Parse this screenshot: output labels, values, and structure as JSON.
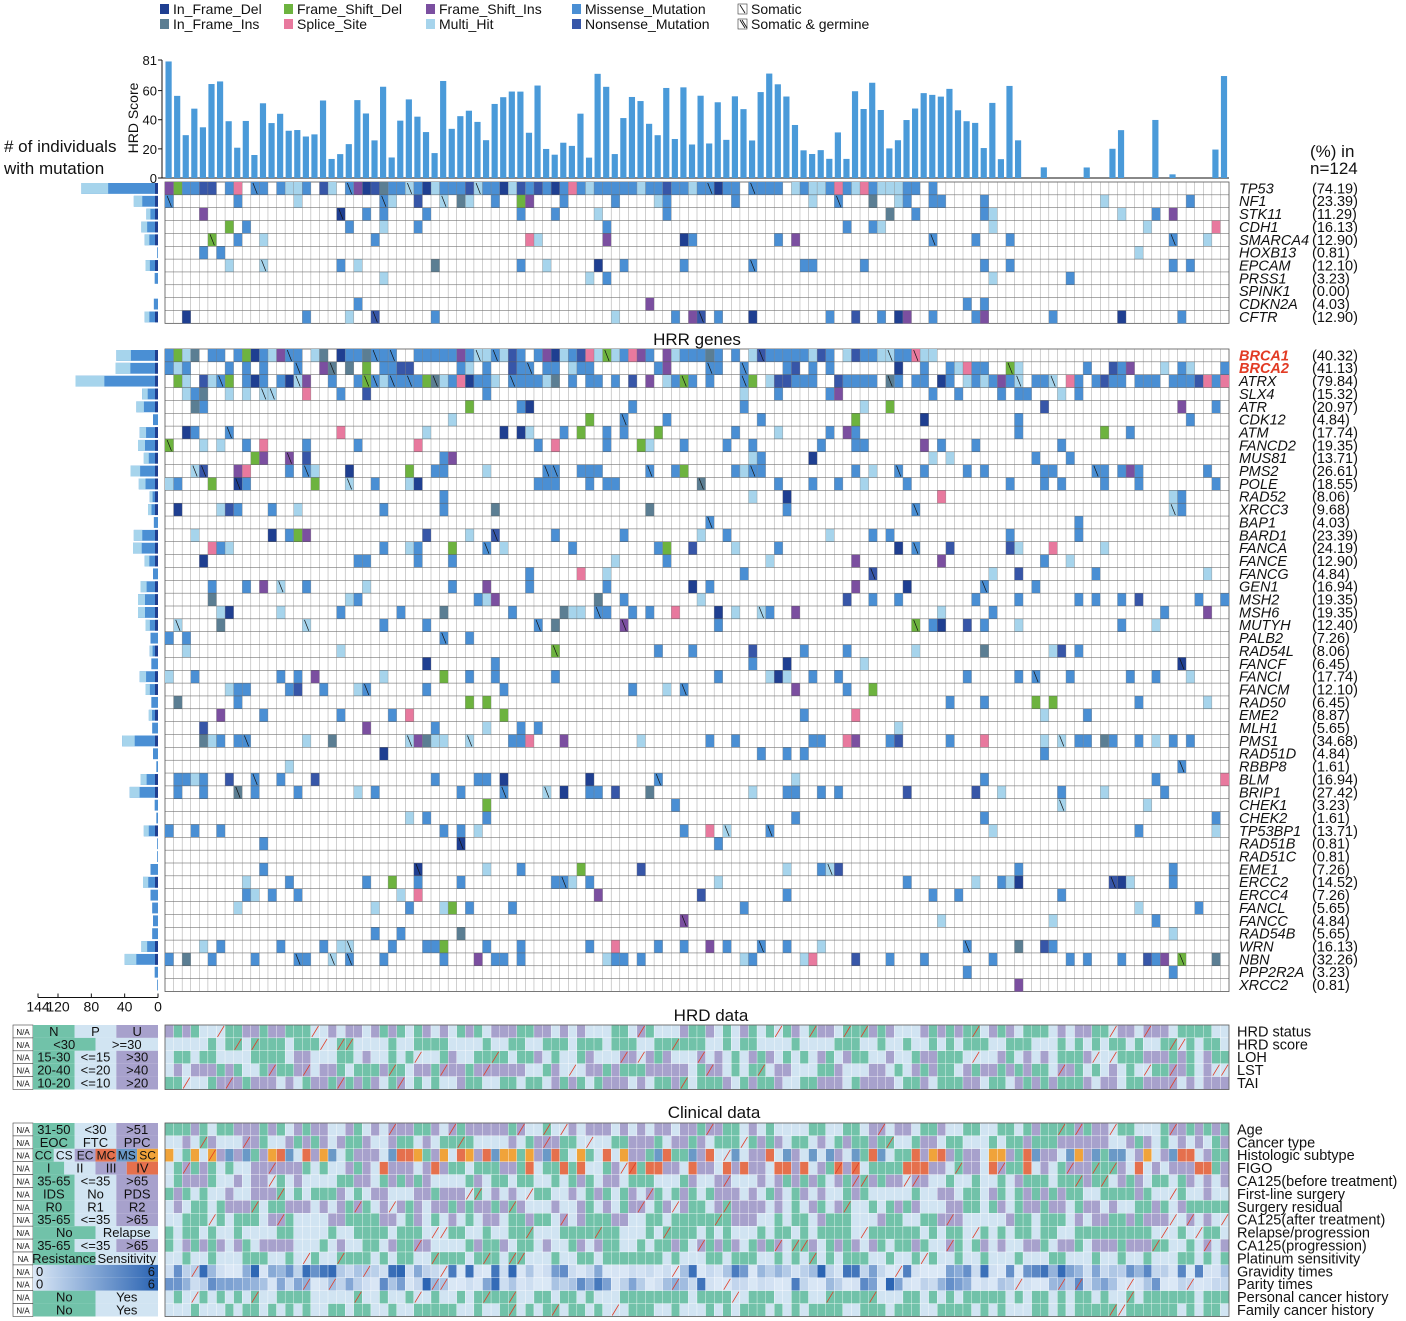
{
  "legend": [
    {
      "label": "In_Frame_Del",
      "color": "#1f3f91"
    },
    {
      "label": "In_Frame_Ins",
      "color": "#5b7e93"
    },
    {
      "label": "Frame_Shift_Del",
      "color": "#6db33f"
    },
    {
      "label": "Splice_Site",
      "color": "#e8799e"
    },
    {
      "label": "Frame_Shift_Ins",
      "color": "#7b4fa0"
    },
    {
      "label": "Multi_Hit",
      "color": "#a6d4ec"
    },
    {
      "label": "Missense_Mutation",
      "color": "#4a8fd4"
    },
    {
      "label": "Nonsense_Mutation",
      "color": "#3756a8"
    },
    {
      "label": "Somatic",
      "icon": "single-slash"
    },
    {
      "label": "Somatic & germine",
      "icon": "double-slash"
    }
  ],
  "chart_data": {
    "type": "heatmap",
    "hrd_score": {
      "ylabel": "HRD Score",
      "yticks": [
        0,
        20,
        40,
        60,
        81
      ],
      "ylim": [
        0,
        81
      ],
      "color": "#4a9ad9"
    },
    "count_axis": {
      "title": [
        "# of individuals",
        "with mutation"
      ],
      "ticks": [
        144,
        120,
        80,
        40,
        0
      ]
    },
    "percent_header": [
      "(%) in",
      "n=124"
    ],
    "gene_groups": [
      {
        "title": "",
        "genes": [
          {
            "name": "TP53",
            "pct": "(74.19)"
          },
          {
            "name": "NF1",
            "pct": "(23.39)"
          },
          {
            "name": "STK11",
            "pct": "(11.29)"
          },
          {
            "name": "CDH1",
            "pct": "(16.13)"
          },
          {
            "name": "SMARCA4",
            "pct": "(12.90)"
          },
          {
            "name": "HOXB13",
            "pct": "(0.81)"
          },
          {
            "name": "EPCAM",
            "pct": "(12.10)"
          },
          {
            "name": "PRSS1",
            "pct": "(3.23)"
          },
          {
            "name": "SPINK1",
            "pct": "(0.00)"
          },
          {
            "name": "CDKN2A",
            "pct": "(4.03)"
          },
          {
            "name": "CFTR",
            "pct": "(12.90)"
          }
        ]
      },
      {
        "title": "HRR genes",
        "genes": [
          {
            "name": "BRCA1",
            "pct": "(40.32)",
            "highlight": true
          },
          {
            "name": "BRCA2",
            "pct": "(41.13)",
            "highlight": true
          },
          {
            "name": "ATRX",
            "pct": "(79.84)"
          },
          {
            "name": "SLX4",
            "pct": "(15.32)"
          },
          {
            "name": "ATR",
            "pct": "(20.97)"
          },
          {
            "name": "CDK12",
            "pct": "(4.84)"
          },
          {
            "name": "ATM",
            "pct": "(17.74)"
          },
          {
            "name": "FANCD2",
            "pct": "(19.35)"
          },
          {
            "name": "MUS81",
            "pct": "(13.71)"
          },
          {
            "name": "PMS2",
            "pct": "(26.61)"
          },
          {
            "name": "POLE",
            "pct": "(18.55)"
          },
          {
            "name": "RAD52",
            "pct": "(8.06)"
          },
          {
            "name": "XRCC3",
            "pct": "(9.68)"
          },
          {
            "name": "BAP1",
            "pct": "(4.03)"
          },
          {
            "name": "BARD1",
            "pct": "(23.39)"
          },
          {
            "name": "FANCA",
            "pct": "(24.19)"
          },
          {
            "name": "FANCE",
            "pct": "(12.90)"
          },
          {
            "name": "FANCG",
            "pct": "(4.84)"
          },
          {
            "name": "GEN1",
            "pct": "(16.94)"
          },
          {
            "name": "MSH2",
            "pct": "(19.35)"
          },
          {
            "name": "MSH6",
            "pct": "(19.35)"
          },
          {
            "name": "MUTYH",
            "pct": "(12.40)"
          },
          {
            "name": "PALB2",
            "pct": "(7.26)"
          },
          {
            "name": "RAD54L",
            "pct": "(8.06)"
          },
          {
            "name": "FANCF",
            "pct": "(6.45)"
          },
          {
            "name": "FANCI",
            "pct": "(17.74)"
          },
          {
            "name": "FANCM",
            "pct": "(12.10)"
          },
          {
            "name": "RAD50",
            "pct": "(6.45)"
          },
          {
            "name": "EME2",
            "pct": "(8.87)"
          },
          {
            "name": "MLH1",
            "pct": "(5.65)"
          },
          {
            "name": "PMS1",
            "pct": "(34.68)"
          },
          {
            "name": "RAD51D",
            "pct": "(4.84)"
          },
          {
            "name": "RBBP8",
            "pct": "(1.61)"
          },
          {
            "name": "BLM",
            "pct": "(16.94)"
          },
          {
            "name": "BRIP1",
            "pct": "(27.42)"
          },
          {
            "name": "CHEK1",
            "pct": "(3.23)"
          },
          {
            "name": "CHEK2",
            "pct": "(1.61)"
          },
          {
            "name": "TP53BP1",
            "pct": "(13.71)"
          },
          {
            "name": "RAD51B",
            "pct": "(0.81)"
          },
          {
            "name": "RAD51C",
            "pct": "(0.81)"
          },
          {
            "name": "EME1",
            "pct": "(7.26)"
          },
          {
            "name": "ERCC2",
            "pct": "(14.52)"
          },
          {
            "name": "ERCC4",
            "pct": "(7.26)"
          },
          {
            "name": "FANCL",
            "pct": "(5.65)"
          },
          {
            "name": "FANCC",
            "pct": "(4.84)"
          },
          {
            "name": "RAD54B",
            "pct": "(5.65)"
          },
          {
            "name": "WRN",
            "pct": "(16.13)"
          },
          {
            "name": "NBN",
            "pct": "(32.26)"
          },
          {
            "name": "PPP2R2A",
            "pct": "(3.23)"
          },
          {
            "name": "XRCC2",
            "pct": "(0.81)"
          }
        ]
      }
    ],
    "hrd_data": {
      "title": "HRD data",
      "rows": [
        {
          "label": "HRD status",
          "na": "N/A",
          "categories": [
            "N",
            "P",
            "U"
          ],
          "colors": [
            "#71c2a9",
            "#d1e4f2",
            "#a7a1cc"
          ]
        },
        {
          "label": "HRD score",
          "na": "N/A",
          "categories": [
            "<30",
            ">=30"
          ],
          "colors": [
            "#71c2a9",
            "#d1e4f2"
          ]
        },
        {
          "label": "LOH",
          "na": "N/A",
          "categories": [
            "15-30",
            "<=15",
            ">30"
          ],
          "colors": [
            "#71c2a9",
            "#d1e4f2",
            "#a7a1cc"
          ]
        },
        {
          "label": "LST",
          "na": "N/A",
          "categories": [
            "20-40",
            "<=20",
            ">40"
          ],
          "colors": [
            "#71c2a9",
            "#d1e4f2",
            "#a7a1cc"
          ]
        },
        {
          "label": "TAI",
          "na": "N/A",
          "categories": [
            "10-20",
            "<=10",
            ">20"
          ],
          "colors": [
            "#71c2a9",
            "#d1e4f2",
            "#a7a1cc"
          ]
        }
      ]
    },
    "clinical_data": {
      "title": "Clinical data",
      "rows": [
        {
          "label": "Age",
          "na": "N/A",
          "categories": [
            "31-50",
            "<30",
            ">51"
          ],
          "colors": [
            "#71c2a9",
            "#d1e4f2",
            "#a7a1cc"
          ]
        },
        {
          "label": "Cancer type",
          "na": "N/A",
          "categories": [
            "EOC",
            "FTC",
            "PPC"
          ],
          "colors": [
            "#71c2a9",
            "#d1e4f2",
            "#a7a1cc"
          ]
        },
        {
          "label": "Histologic subtype",
          "na": "N/A",
          "categories": [
            "CC",
            "CS",
            "EC",
            "MC",
            "MS",
            "SC"
          ],
          "colors": [
            "#71c2a9",
            "#d1e4f2",
            "#a7a1cc",
            "#e5704d",
            "#6a99c7",
            "#f0a33a"
          ]
        },
        {
          "label": "FIGO",
          "na": "N/A",
          "categories": [
            "I",
            "II",
            "III",
            "IV"
          ],
          "colors": [
            "#71c2a9",
            "#d1e4f2",
            "#a7a1cc",
            "#e5704d"
          ]
        },
        {
          "label": "CA125(before treatment)",
          "na": "N/A",
          "categories": [
            "35-65",
            "<=35",
            ">65"
          ],
          "colors": [
            "#71c2a9",
            "#d1e4f2",
            "#a7a1cc"
          ]
        },
        {
          "label": "First-line surgery",
          "na": "N/A",
          "categories": [
            "IDS",
            "No",
            "PDS"
          ],
          "colors": [
            "#71c2a9",
            "#d1e4f2",
            "#a7a1cc"
          ]
        },
        {
          "label": "Surgery residual",
          "na": "N/A",
          "categories": [
            "R0",
            "R1",
            "R2"
          ],
          "colors": [
            "#71c2a9",
            "#d1e4f2",
            "#a7a1cc"
          ]
        },
        {
          "label": "CA125(after treatment)",
          "na": "N/A",
          "categories": [
            "35-65",
            "<=35",
            ">65"
          ],
          "colors": [
            "#71c2a9",
            "#d1e4f2",
            "#a7a1cc"
          ]
        },
        {
          "label": "Relapse/progression",
          "na": "N/A",
          "categories": [
            "No",
            "Relapse"
          ],
          "colors": [
            "#71c2a9",
            "#d1e4f2"
          ]
        },
        {
          "label": "CA125(progression)",
          "na": "N/A",
          "categories": [
            "35-65",
            "<=35",
            ">65"
          ],
          "colors": [
            "#71c2a9",
            "#d1e4f2",
            "#a7a1cc"
          ]
        },
        {
          "label": "Platinum sensitivity",
          "na": "NA",
          "categories": [
            "Resistance",
            "Sensitivity"
          ],
          "colors": [
            "#71c2a9",
            "#d1e4f2"
          ]
        },
        {
          "label": "Gravidity times",
          "na": "N/A",
          "gradient": {
            "min": "0",
            "max": "6",
            "from": "#dbe8f6",
            "to": "#2862b2"
          }
        },
        {
          "label": "Parity times",
          "na": "N/A",
          "gradient": {
            "min": "0",
            "max": "6",
            "from": "#dbe8f6",
            "to": "#2862b2"
          }
        },
        {
          "label": "Personal cancer history",
          "na": "N/A",
          "categories": [
            "No",
            "Yes"
          ],
          "colors": [
            "#71c2a9",
            "#d1e4f2"
          ]
        },
        {
          "label": "Family cancer history",
          "na": "N/A",
          "categories": [
            "No",
            "Yes"
          ],
          "colors": [
            "#71c2a9",
            "#d1e4f2"
          ]
        }
      ]
    }
  }
}
